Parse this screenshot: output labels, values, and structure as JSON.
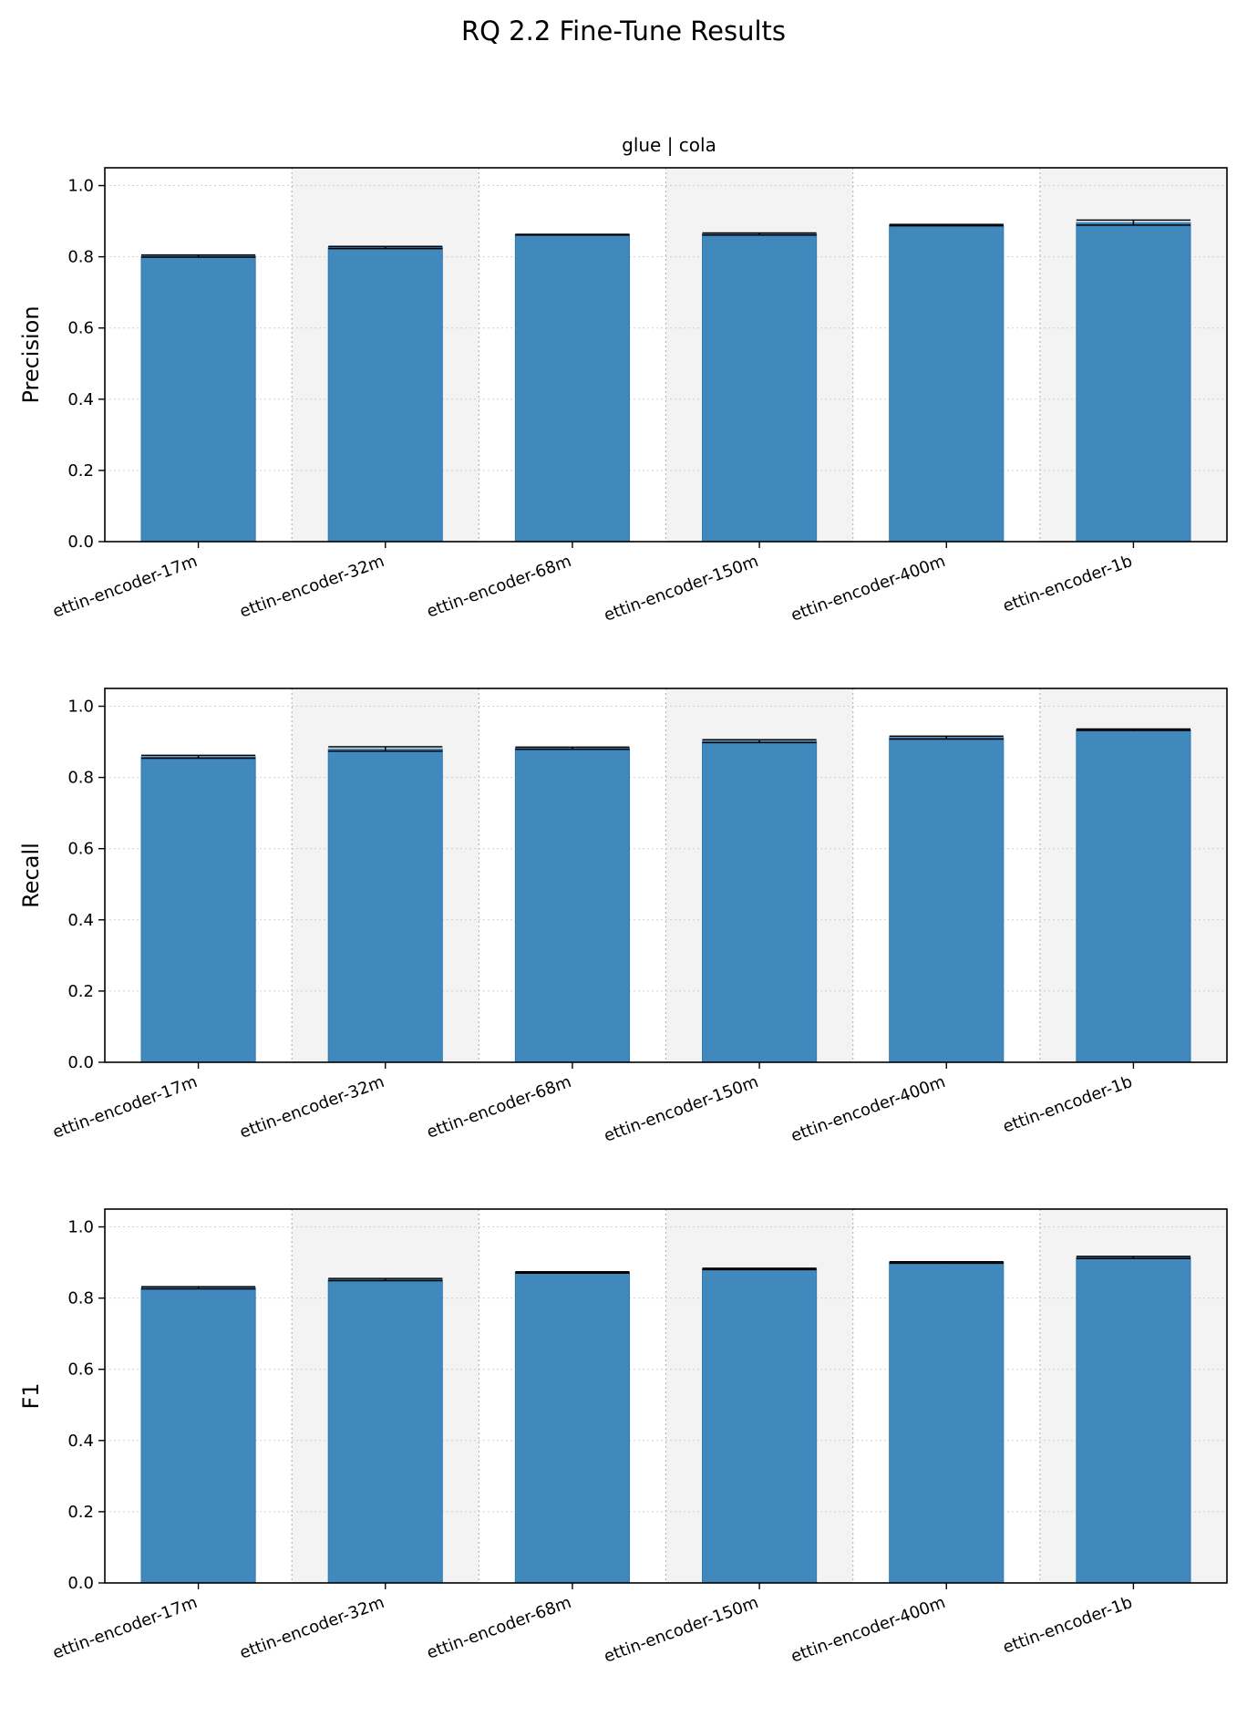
{
  "figure": {
    "title": "RQ 2.2 Fine-Tune Results",
    "subtitle": "glue | cola"
  },
  "colors": {
    "bar": "#4189bd",
    "bar_edge": "#2f7ab5",
    "band": "#f3f3f3",
    "grid": "#cfcfcf"
  },
  "chart_data": [
    {
      "type": "bar",
      "title": "glue | cola",
      "xlabel": "",
      "ylabel": "Precision",
      "ylim": [
        0,
        1.05
      ],
      "yticks": [
        0.0,
        0.2,
        0.4,
        0.6,
        0.8,
        1.0
      ],
      "ytick_labels": [
        "0.0",
        "0.2",
        "0.4",
        "0.6",
        "0.8",
        "1.0"
      ],
      "grid": "on",
      "categories": [
        "ettin-encoder-17m",
        "ettin-encoder-32m",
        "ettin-encoder-68m",
        "ettin-encoder-150m",
        "ettin-encoder-400m",
        "ettin-encoder-1b"
      ],
      "values": [
        0.802,
        0.826,
        0.862,
        0.864,
        0.889,
        0.896
      ],
      "errors": [
        0.003,
        0.003,
        0.001,
        0.003,
        0.002,
        0.007
      ]
    },
    {
      "type": "bar",
      "title": "",
      "xlabel": "",
      "ylabel": "Recall",
      "ylim": [
        0,
        1.05
      ],
      "yticks": [
        0.0,
        0.2,
        0.4,
        0.6,
        0.8,
        1.0
      ],
      "ytick_labels": [
        "0.0",
        "0.2",
        "0.4",
        "0.6",
        "0.8",
        "1.0"
      ],
      "grid": "on",
      "categories": [
        "ettin-encoder-17m",
        "ettin-encoder-32m",
        "ettin-encoder-68m",
        "ettin-encoder-150m",
        "ettin-encoder-400m",
        "ettin-encoder-1b"
      ],
      "values": [
        0.858,
        0.88,
        0.882,
        0.902,
        0.912,
        0.934
      ],
      "errors": [
        0.004,
        0.006,
        0.003,
        0.004,
        0.004,
        0.002
      ]
    },
    {
      "type": "bar",
      "title": "",
      "xlabel": "",
      "ylabel": "F1",
      "ylim": [
        0,
        1.05
      ],
      "yticks": [
        0.0,
        0.2,
        0.4,
        0.6,
        0.8,
        1.0
      ],
      "ytick_labels": [
        "0.0",
        "0.2",
        "0.4",
        "0.6",
        "0.8",
        "1.0"
      ],
      "grid": "on",
      "categories": [
        "ettin-encoder-17m",
        "ettin-encoder-32m",
        "ettin-encoder-68m",
        "ettin-encoder-150m",
        "ettin-encoder-400m",
        "ettin-encoder-1b"
      ],
      "values": [
        0.829,
        0.852,
        0.872,
        0.882,
        0.9,
        0.914
      ],
      "errors": [
        0.003,
        0.003,
        0.002,
        0.002,
        0.002,
        0.003
      ]
    }
  ]
}
